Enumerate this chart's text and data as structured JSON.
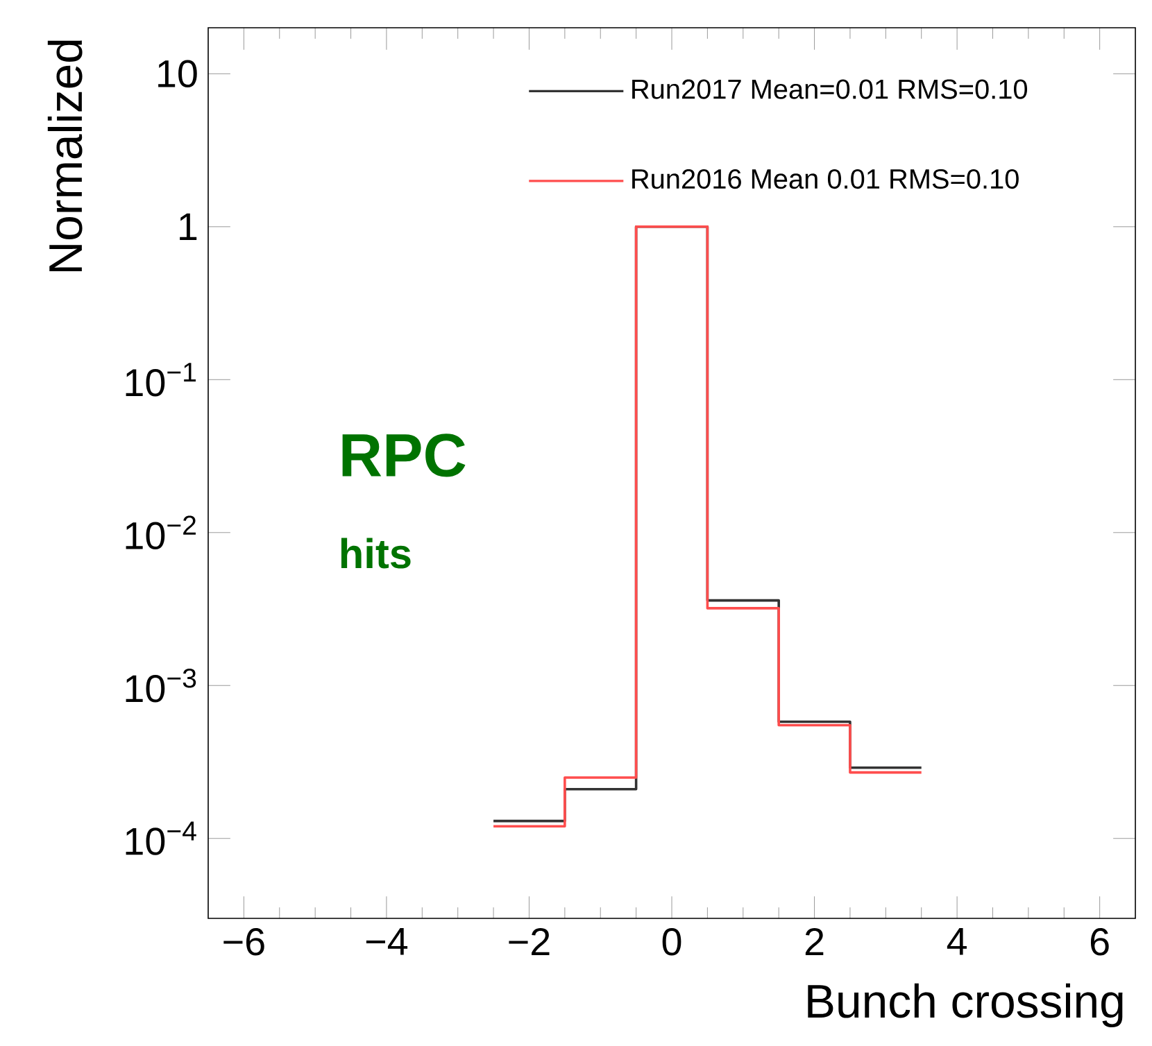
{
  "chart_data": {
    "type": "histogram",
    "xlabel": "Bunch crossing",
    "ylabel": "Normalized",
    "bins": [
      -2.5,
      -1.5,
      -0.5,
      0.5,
      1.5,
      2.5,
      3.5
    ],
    "series": [
      {
        "name": "Run2017 Mean=0.01 RMS=0.10",
        "color": "#333333",
        "values": [
          0.00013,
          0.00021,
          1,
          0.0036,
          0.00058,
          0.00029
        ]
      },
      {
        "name": "Run2016 Mean 0.01 RMS=0.10",
        "color": "#ff4d4d",
        "values": [
          0.00012,
          0.00025,
          1,
          0.0032,
          0.00055,
          0.00027
        ]
      }
    ],
    "xlim": [
      -6.5,
      6.5
    ],
    "ylim": [
      3e-05,
      20
    ],
    "xticks": [
      {
        "value": -6,
        "label": "−6"
      },
      {
        "value": -4,
        "label": "−4"
      },
      {
        "value": -2,
        "label": "−2"
      },
      0,
      2,
      4,
      6
    ],
    "yticks": [
      {
        "value": 0.0001,
        "label": "10$^{−4}$"
      },
      {
        "value": 0.001,
        "label": "10$^{−3}$"
      },
      {
        "value": 0.01,
        "label": "10$^{−2}$"
      },
      {
        "value": 0.1,
        "label": "10$^{−1}$"
      },
      1,
      10
    ],
    "log": "y",
    "legend": "top right",
    "annotations": [
      "RPC",
      "hits"
    ]
  }
}
